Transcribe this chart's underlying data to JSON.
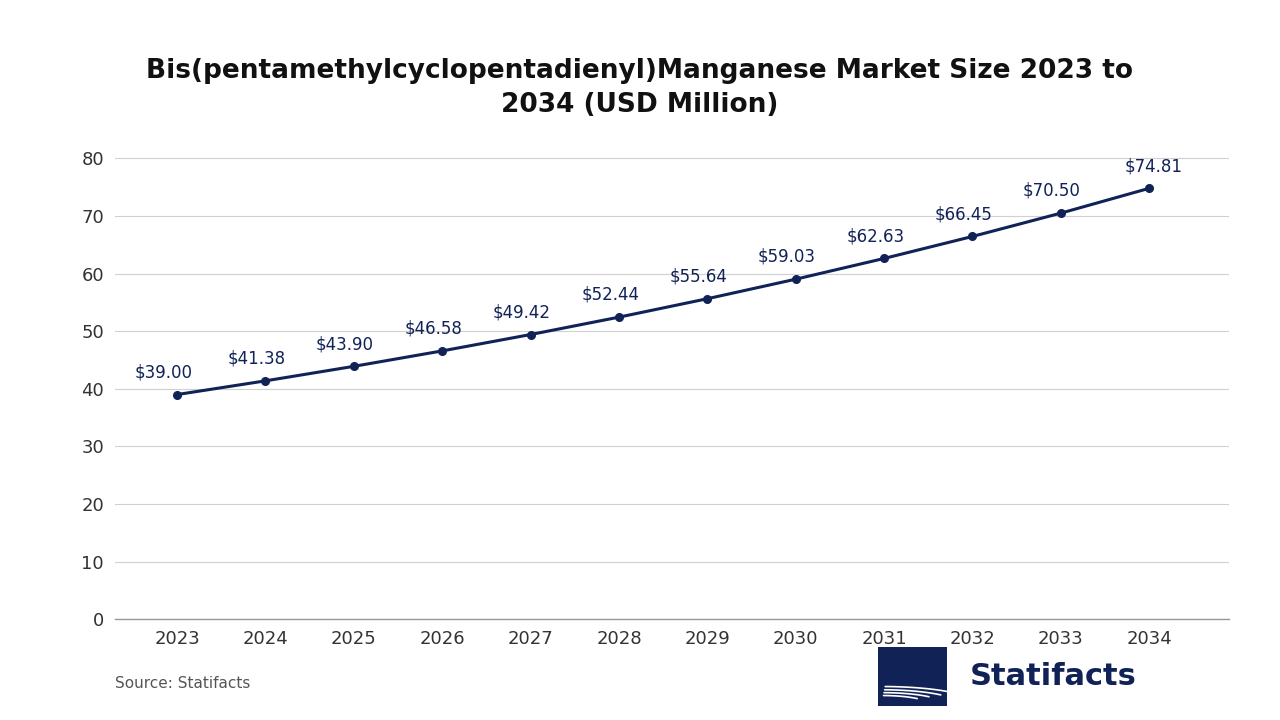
{
  "title_line1": "Bis(pentamethylcyclopentadienyl)Manganese Market Size 2023 to",
  "title_line2": "2034 (USD Million)",
  "years": [
    2023,
    2024,
    2025,
    2026,
    2027,
    2028,
    2029,
    2030,
    2031,
    2032,
    2033,
    2034
  ],
  "values": [
    39.0,
    41.38,
    43.9,
    46.58,
    49.42,
    52.44,
    55.64,
    59.03,
    62.63,
    66.45,
    70.5,
    74.81
  ],
  "labels": [
    "$39.00",
    "$41.38",
    "$43.90",
    "$46.58",
    "$49.42",
    "$52.44",
    "$55.64",
    "$59.03",
    "$62.63",
    "$66.45",
    "$70.50",
    "$74.81"
  ],
  "line_color": "#112257",
  "marker_color": "#112257",
  "background_color": "#ffffff",
  "grid_color": "#d0d0d0",
  "title_color": "#111111",
  "tick_color": "#333333",
  "label_color": "#112257",
  "ylim": [
    0,
    85
  ],
  "yticks": [
    0,
    10,
    20,
    30,
    40,
    50,
    60,
    70,
    80
  ],
  "source_text": "Source: Statifacts",
  "title_fontsize": 19,
  "tick_fontsize": 13,
  "label_fontsize": 12,
  "source_fontsize": 11,
  "logo_text": "Statifacts",
  "logo_color": "#112257",
  "logo_fontsize": 22
}
